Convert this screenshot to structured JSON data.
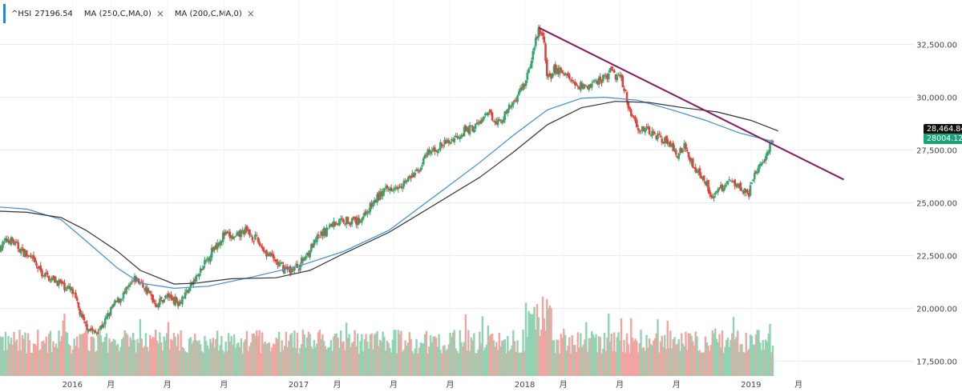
{
  "legend": {
    "symbol": "^HSI",
    "value": "27196.54",
    "studies": [
      {
        "label": "MA (250,C,MA,0)"
      },
      {
        "label": "MA (200,C,MA,0)"
      }
    ],
    "close_glyph": "×"
  },
  "watermark": "",
  "colors": {
    "up": "#2ea86b",
    "down": "#e0433a",
    "up_volume": "#8fd3b2",
    "down_volume": "#f1a5a1",
    "ma250": "#3b8ed8",
    "ma200": "#333333",
    "trendline": "#8b1a5c",
    "grid": "#ececec",
    "tag_black": "#111111",
    "tag_green": "#1aa37a"
  },
  "chart_data": {
    "type": "candlestick",
    "title": "",
    "ylim": [
      16800,
      34600
    ],
    "y_ticks": [
      {
        "value": 17500,
        "label": "17,500.00"
      },
      {
        "value": 20000,
        "label": "20,000.00"
      },
      {
        "value": 22500,
        "label": "22,500.00"
      },
      {
        "value": 25000,
        "label": "25,000.00"
      },
      {
        "value": 27500,
        "label": "27,500.00"
      },
      {
        "value": 30000,
        "label": "30,000.00"
      },
      {
        "value": 32500,
        "label": "32,500.00"
      }
    ],
    "x_range": [
      2015.68,
      2019.72
    ],
    "x_ticks": [
      {
        "t": 2016.0,
        "label": "2016"
      },
      {
        "t": 2016.17,
        "label": "月"
      },
      {
        "t": 2016.42,
        "label": "月"
      },
      {
        "t": 2016.67,
        "label": "月"
      },
      {
        "t": 2017.0,
        "label": "2017"
      },
      {
        "t": 2017.17,
        "label": "月"
      },
      {
        "t": 2017.42,
        "label": "月"
      },
      {
        "t": 2017.67,
        "label": "月"
      },
      {
        "t": 2018.0,
        "label": "2018"
      },
      {
        "t": 2018.17,
        "label": "月"
      },
      {
        "t": 2018.42,
        "label": "月"
      },
      {
        "t": 2018.67,
        "label": "月"
      },
      {
        "t": 2019.0,
        "label": "2019"
      },
      {
        "t": 2019.21,
        "label": "月"
      }
    ],
    "price_path": [
      [
        2015.68,
        22900
      ],
      [
        2015.72,
        23300
      ],
      [
        2015.77,
        22800
      ],
      [
        2015.82,
        22300
      ],
      [
        2015.87,
        21600
      ],
      [
        2015.93,
        21300
      ],
      [
        2016.0,
        20800
      ],
      [
        2016.05,
        19300
      ],
      [
        2016.1,
        18800
      ],
      [
        2016.14,
        19300
      ],
      [
        2016.18,
        20100
      ],
      [
        2016.23,
        20700
      ],
      [
        2016.28,
        21400
      ],
      [
        2016.32,
        21000
      ],
      [
        2016.37,
        20200
      ],
      [
        2016.42,
        20600
      ],
      [
        2016.47,
        20300
      ],
      [
        2016.52,
        21000
      ],
      [
        2016.57,
        21800
      ],
      [
        2016.62,
        22800
      ],
      [
        2016.67,
        23500
      ],
      [
        2016.72,
        23300
      ],
      [
        2016.76,
        23700
      ],
      [
        2016.81,
        23300
      ],
      [
        2016.86,
        22600
      ],
      [
        2016.92,
        22000
      ],
      [
        2016.96,
        21800
      ],
      [
        2017.0,
        22000
      ],
      [
        2017.05,
        22800
      ],
      [
        2017.1,
        23500
      ],
      [
        2017.15,
        24000
      ],
      [
        2017.2,
        24200
      ],
      [
        2017.26,
        24100
      ],
      [
        2017.31,
        24700
      ],
      [
        2017.36,
        25400
      ],
      [
        2017.42,
        25800
      ],
      [
        2017.47,
        26000
      ],
      [
        2017.52,
        26400
      ],
      [
        2017.57,
        27300
      ],
      [
        2017.63,
        27700
      ],
      [
        2017.68,
        28000
      ],
      [
        2017.73,
        28400
      ],
      [
        2017.78,
        28600
      ],
      [
        2017.84,
        29200
      ],
      [
        2017.89,
        28800
      ],
      [
        2017.94,
        29600
      ],
      [
        2018.0,
        30700
      ],
      [
        2018.03,
        31800
      ],
      [
        2018.06,
        33200
      ],
      [
        2018.08,
        33100
      ],
      [
        2018.1,
        30800
      ],
      [
        2018.13,
        31300
      ],
      [
        2018.17,
        31200
      ],
      [
        2018.22,
        30600
      ],
      [
        2018.27,
        30500
      ],
      [
        2018.33,
        30800
      ],
      [
        2018.38,
        31200
      ],
      [
        2018.43,
        30800
      ],
      [
        2018.46,
        29500
      ],
      [
        2018.5,
        28600
      ],
      [
        2018.54,
        28400
      ],
      [
        2018.58,
        28200
      ],
      [
        2018.63,
        27900
      ],
      [
        2018.67,
        27300
      ],
      [
        2018.71,
        27700
      ],
      [
        2018.75,
        26600
      ],
      [
        2018.79,
        26200
      ],
      [
        2018.83,
        25300
      ],
      [
        2018.87,
        25700
      ],
      [
        2018.91,
        26100
      ],
      [
        2018.95,
        25800
      ],
      [
        2018.99,
        25400
      ],
      [
        2019.02,
        26400
      ],
      [
        2019.06,
        27200
      ],
      [
        2019.1,
        28000
      ]
    ],
    "ma250_path": [
      [
        2015.68,
        24800
      ],
      [
        2015.8,
        24700
      ],
      [
        2015.95,
        24200
      ],
      [
        2016.06,
        23200
      ],
      [
        2016.2,
        21900
      ],
      [
        2016.3,
        21200
      ],
      [
        2016.45,
        20950
      ],
      [
        2016.6,
        21050
      ],
      [
        2016.8,
        21500
      ],
      [
        2017.0,
        22000
      ],
      [
        2017.2,
        22700
      ],
      [
        2017.4,
        23700
      ],
      [
        2017.6,
        25300
      ],
      [
        2017.8,
        26900
      ],
      [
        2017.95,
        28200
      ],
      [
        2018.1,
        29400
      ],
      [
        2018.25,
        29950
      ],
      [
        2018.35,
        30000
      ],
      [
        2018.5,
        29850
      ],
      [
        2018.65,
        29400
      ],
      [
        2018.8,
        28900
      ],
      [
        2018.95,
        28300
      ],
      [
        2019.1,
        27900
      ]
    ],
    "ma200_path": [
      [
        2015.68,
        24600
      ],
      [
        2015.8,
        24550
      ],
      [
        2015.95,
        24300
      ],
      [
        2016.06,
        23700
      ],
      [
        2016.2,
        22700
      ],
      [
        2016.3,
        21800
      ],
      [
        2016.45,
        21150
      ],
      [
        2016.55,
        21200
      ],
      [
        2016.7,
        21400
      ],
      [
        2016.9,
        21450
      ],
      [
        2017.05,
        21800
      ],
      [
        2017.2,
        22600
      ],
      [
        2017.4,
        23600
      ],
      [
        2017.6,
        24900
      ],
      [
        2017.8,
        26200
      ],
      [
        2017.95,
        27400
      ],
      [
        2018.1,
        28700
      ],
      [
        2018.25,
        29500
      ],
      [
        2018.4,
        29800
      ],
      [
        2018.55,
        29750
      ],
      [
        2018.7,
        29500
      ],
      [
        2018.85,
        29300
      ],
      [
        2019.0,
        28900
      ],
      [
        2019.12,
        28400
      ]
    ],
    "trendline": [
      [
        2018.06,
        33300
      ],
      [
        2019.41,
        26100
      ]
    ],
    "price_tags": [
      {
        "label": "28,464.84",
        "value": 28464.84,
        "style": "black"
      },
      {
        "label": "28004.12",
        "value": 28004.12,
        "style": "green"
      }
    ]
  }
}
